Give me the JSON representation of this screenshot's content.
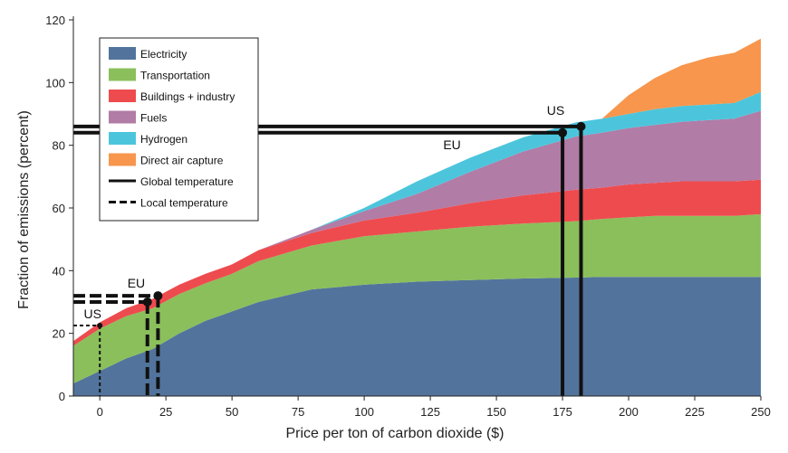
{
  "chart_data": {
    "type": "area",
    "stacked": true,
    "title": "",
    "xlabel": "Price per ton of carbon dioxide ($)",
    "ylabel": "Fraction of emissions (percent)",
    "xlim": [
      -10,
      250
    ],
    "ylim": [
      0,
      120
    ],
    "xticks": [
      0,
      25,
      50,
      75,
      100,
      125,
      150,
      175,
      200,
      225,
      250
    ],
    "yticks": [
      0,
      20,
      40,
      60,
      80,
      100,
      120
    ],
    "x": [
      -10,
      0,
      10,
      20,
      30,
      40,
      50,
      60,
      80,
      100,
      120,
      140,
      160,
      180,
      190,
      200,
      210,
      220,
      230,
      240,
      250
    ],
    "series": [
      {
        "name": "Electricity",
        "color": "#52749c",
        "values": [
          4,
          8,
          12,
          15,
          20,
          24,
          27,
          30,
          34,
          35.5,
          36.5,
          37,
          37.5,
          37.8,
          38,
          38,
          38,
          38,
          38,
          38,
          38
        ]
      },
      {
        "name": "Transportation",
        "color": "#8bbf5b",
        "values": [
          12,
          13.5,
          13.5,
          13,
          12.5,
          12,
          12,
          13,
          14,
          15.5,
          16,
          17,
          17.5,
          18,
          18.5,
          19,
          19.5,
          19.5,
          19.5,
          19.5,
          20
        ]
      },
      {
        "name": "Buildings + industry",
        "color": "#ee4b4f",
        "values": [
          1.5,
          2,
          2.5,
          3,
          3,
          3,
          3,
          3.5,
          4,
          5,
          6,
          7.5,
          9,
          10,
          10,
          10.5,
          10.5,
          11,
          11,
          11,
          11
        ]
      },
      {
        "name": "Fuels",
        "color": "#b17ca6",
        "values": [
          0,
          0,
          0,
          0,
          0,
          0,
          0,
          0,
          1,
          3,
          6,
          10,
          14,
          17,
          17.5,
          18,
          18.5,
          19,
          19.5,
          20,
          22
        ]
      },
      {
        "name": "Hydrogen",
        "color": "#4cc5dc",
        "values": [
          0,
          0,
          0,
          0,
          0,
          0,
          0,
          0,
          0,
          1,
          4,
          4.5,
          4.5,
          4.5,
          4.5,
          4.5,
          5,
          5,
          5,
          5,
          6
        ]
      },
      {
        "name": "Direct air capture",
        "color": "#f7964c",
        "values": [
          0,
          0,
          0,
          0,
          0,
          0,
          0,
          0,
          0,
          0,
          0,
          0,
          0,
          0,
          0,
          6,
          10,
          13,
          15,
          16,
          17
        ]
      }
    ],
    "reference_lines": [
      {
        "style": "solid",
        "label": "US",
        "x": 182,
        "y": 86
      },
      {
        "style": "solid",
        "label": "EU",
        "x": 175,
        "y": 84
      },
      {
        "style": "dashed",
        "label": "EU",
        "x": 22,
        "y": 32
      },
      {
        "style": "dashed",
        "label": "",
        "x": 18,
        "y": 30
      },
      {
        "style": "dotted",
        "label": "US",
        "x": 0,
        "y": 22.5
      }
    ],
    "legend": {
      "position": "top-left",
      "line_entries": [
        {
          "label": "Global temperature",
          "style": "solid"
        },
        {
          "label": "Local temperature",
          "style": "dashed"
        }
      ]
    },
    "grid": false
  }
}
